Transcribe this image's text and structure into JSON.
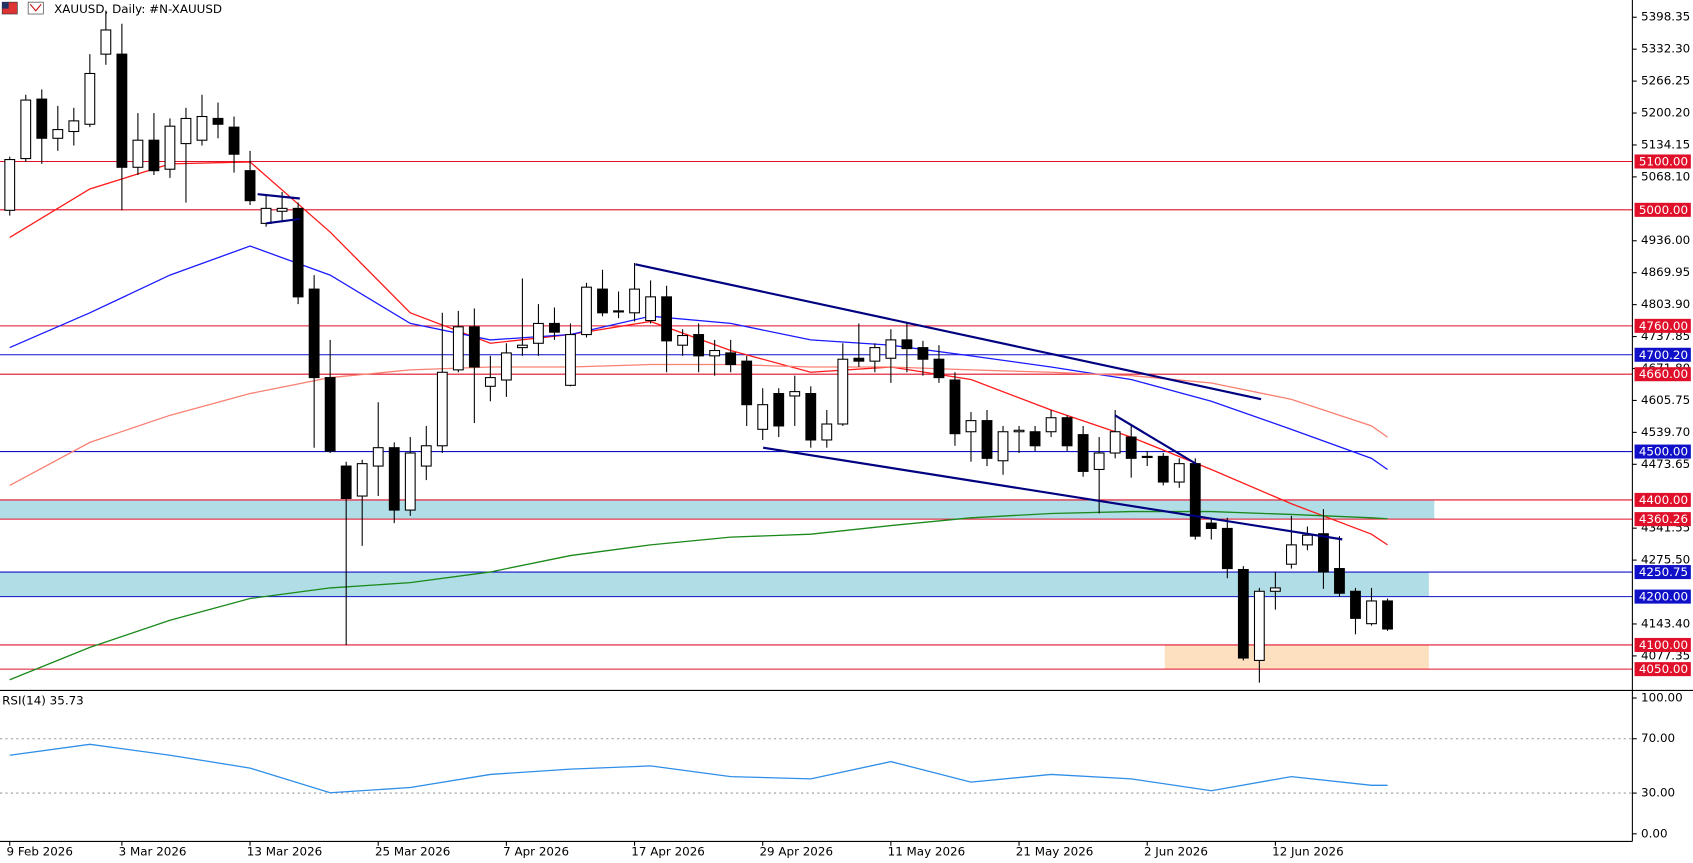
{
  "chart_data": [
    {
      "type": "candlestick",
      "title": "XAUUSD, Daily:  #N-XAUUSD",
      "categories": [
        "9 Feb 2026",
        null,
        null,
        null,
        null,
        null,
        null,
        "3 Mar 2026",
        null,
        null,
        null,
        null,
        null,
        null,
        null,
        "13 Mar 2026",
        null,
        null,
        null,
        null,
        null,
        null,
        null,
        "25 Mar 2026",
        null,
        null,
        null,
        null,
        null,
        null,
        null,
        "7 Apr 2026",
        null,
        null,
        null,
        null,
        null,
        null,
        null,
        "17 Apr 2026",
        null,
        null,
        null,
        null,
        null,
        null,
        null,
        "29 Apr 2026",
        null,
        null,
        null,
        null,
        null,
        null,
        null,
        "11 May 2026",
        null,
        null,
        null,
        null,
        null,
        null,
        null,
        "21 May 2026",
        null,
        null,
        null,
        null,
        null,
        null,
        null,
        "2 Jun 2026",
        null,
        null,
        null,
        null,
        null,
        null,
        null,
        "12 Jun 2026",
        null,
        null,
        null,
        null,
        null,
        null,
        null
      ],
      "open": [
        4999,
        5106,
        5229,
        5148,
        5162,
        5177,
        5322,
        5322,
        5088,
        5144,
        5084,
        5137,
        5144,
        5189,
        5171,
        5081,
        4972,
        4997,
        5003,
        4836,
        4653,
        4470,
        4408,
        4470,
        4508,
        4379,
        4470,
        4512,
        4669,
        4758,
        4635,
        4648,
        4715,
        4724,
        4765,
        4637,
        4742,
        4836,
        4789,
        4787,
        4771,
        4820,
        4720,
        4742,
        4698,
        4704,
        4687,
        4546,
        4620,
        4615,
        4620,
        4524,
        4557,
        4693,
        4687,
        4693,
        4731,
        4715,
        4691,
        4648,
        4541,
        4564,
        4481,
        4541,
        4541,
        4541,
        4570,
        4535,
        4463,
        4497,
        4530,
        4488,
        4490,
        4437,
        4475,
        4352,
        4341,
        4256,
        4068,
        4211,
        4267,
        4307,
        4330,
        4258,
        4211,
        4144,
        4191
      ],
      "high": [
        5110,
        5238,
        5249,
        5215,
        5211,
        5322,
        5412,
        5385,
        5200,
        5200,
        5189,
        5211,
        5238,
        5222,
        5193,
        5122,
        5032,
        5037,
        5015,
        4865,
        4731,
        4479,
        4483,
        4602,
        4519,
        4530,
        4553,
        4787,
        4791,
        4796,
        4698,
        4724,
        4858,
        4805,
        4798,
        4765,
        4849,
        4876,
        4831,
        4890,
        4854,
        4843,
        4753,
        4765,
        4731,
        4731,
        4698,
        4631,
        4631,
        4657,
        4635,
        4586,
        4724,
        4765,
        4724,
        4753,
        4765,
        4729,
        4720,
        4664,
        4582,
        4586,
        4553,
        4553,
        4553,
        4586,
        4575,
        4553,
        4530,
        4586,
        4553,
        4501,
        4497,
        4486,
        4486,
        4363,
        4363,
        4263,
        4218,
        4251,
        4367,
        4345,
        4381,
        4325,
        4218,
        4218,
        4196
      ],
      "low": [
        4988,
        5099,
        5095,
        5122,
        5133,
        5171,
        5300,
        4999,
        5072,
        5072,
        5066,
        5015,
        5133,
        5148,
        5077,
        5010,
        4965,
        4977,
        4805,
        4508,
        4497,
        4100,
        4305,
        4408,
        4352,
        4367,
        4441,
        4497,
        4664,
        4559,
        4604,
        4613,
        4698,
        4698,
        4731,
        4635,
        4736,
        4780,
        4776,
        4769,
        4765,
        4664,
        4698,
        4664,
        4657,
        4664,
        4553,
        4524,
        4530,
        4553,
        4508,
        4508,
        4553,
        4675,
        4664,
        4642,
        4664,
        4657,
        4642,
        4512,
        4479,
        4470,
        4452,
        4497,
        4501,
        4530,
        4501,
        4448,
        4372,
        4486,
        4446,
        4470,
        4430,
        4425,
        4318,
        4318,
        4238,
        4068,
        4022,
        4173,
        4258,
        4296,
        4216,
        4200,
        4122,
        4140,
        4129
      ],
      "close": [
        5104,
        5227,
        5148,
        5166,
        5184,
        5282,
        5372,
        5088,
        5144,
        5081,
        5173,
        5189,
        5193,
        5177,
        5115,
        5019,
        5003,
        5003,
        4820,
        4653,
        4501,
        4403,
        4475,
        4508,
        4379,
        4497,
        4512,
        4664,
        4758,
        4675,
        4653,
        4704,
        4720,
        4765,
        4747,
        4742,
        4840,
        4787,
        4791,
        4836,
        4820,
        4729,
        4740,
        4698,
        4709,
        4680,
        4597,
        4597,
        4553,
        4624,
        4524,
        4557,
        4691,
        4687,
        4715,
        4731,
        4713,
        4691,
        4653,
        4537,
        4564,
        4486,
        4541,
        4544,
        4512,
        4570,
        4512,
        4459,
        4497,
        4541,
        4486,
        4490,
        4437,
        4475,
        4325,
        4341,
        4258,
        4073,
        4211,
        4218,
        4307,
        4327,
        4251,
        4207,
        4155,
        4191,
        4133
      ],
      "up_color": "#ffffff",
      "down_color": "#000000",
      "lines": [
        {
          "color": "#ff1a1a",
          "x": [
            0,
            5,
            10,
            15,
            20,
            25,
            30,
            35,
            40,
            45,
            50,
            55,
            60,
            65,
            70,
            75,
            80,
            85,
            86
          ],
          "values": [
            4943,
            5043,
            5095,
            5099,
            4954,
            4787,
            4724,
            4742,
            4769,
            4709,
            4664,
            4675,
            4649,
            4586,
            4530,
            4463,
            4392,
            4329,
            4307
          ]
        },
        {
          "color": "#1a1aff",
          "x": [
            0,
            5,
            10,
            15,
            20,
            25,
            30,
            35,
            40,
            45,
            50,
            55,
            60,
            65,
            70,
            75,
            80,
            85,
            86
          ],
          "values": [
            4715,
            4787,
            4865,
            4925,
            4865,
            4765,
            4731,
            4742,
            4780,
            4765,
            4731,
            4720,
            4698,
            4675,
            4649,
            4604,
            4546,
            4486,
            4463
          ]
        },
        {
          "color": "#fa8072",
          "x": [
            0,
            5,
            10,
            15,
            20,
            25,
            30,
            35,
            40,
            45,
            50,
            55,
            60,
            65,
            70,
            75,
            80,
            85,
            86
          ],
          "values": [
            4430,
            4519,
            4575,
            4620,
            4653,
            4669,
            4675,
            4675,
            4680,
            4680,
            4675,
            4675,
            4669,
            4664,
            4657,
            4642,
            4608,
            4553,
            4530
          ]
        },
        {
          "color": "#1a8a1a",
          "x": [
            0,
            5,
            10,
            15,
            20,
            25,
            30,
            35,
            40,
            45,
            50,
            55,
            60,
            65,
            70,
            75,
            80,
            85,
            86
          ],
          "values": [
            4028,
            4095,
            4151,
            4196,
            4218,
            4229,
            4251,
            4285,
            4307,
            4323,
            4329,
            4347,
            4363,
            4372,
            4376,
            4376,
            4370,
            4363,
            4361
          ]
        }
      ],
      "levels": [
        {
          "value": 5100,
          "label": "5100.00",
          "color": "#e0102a"
        },
        {
          "value": 5000,
          "label": "5000.00",
          "color": "#e0102a"
        },
        {
          "value": 4760,
          "label": "4760.00",
          "color": "#e0102a"
        },
        {
          "value": 4700.2,
          "label": "4700.20",
          "color": "#1010c8"
        },
        {
          "value": 4660,
          "label": "4660.00",
          "color": "#e0102a"
        },
        {
          "value": 4500,
          "label": "4500.00",
          "color": "#1010c8"
        },
        {
          "value": 4400,
          "label": "4400.00",
          "color": "#e0102a"
        },
        {
          "value": 4360.26,
          "label": "4360.26",
          "color": "#e0102a"
        },
        {
          "value": 4250.75,
          "label": "4250.75",
          "color": "#1010c8"
        },
        {
          "value": 4200,
          "label": "4200.00",
          "color": "#1010c8"
        },
        {
          "value": 4100,
          "label": "4100.00",
          "color": "#e0102a"
        },
        {
          "value": 4050,
          "label": "4050.00",
          "color": "#e0102a"
        }
      ],
      "zones": [
        {
          "from": 4400,
          "to": 4360.26,
          "color": "#b0dde6"
        },
        {
          "from": 4250.75,
          "to": 4200,
          "color": "#b0dde6"
        },
        {
          "from": 4100,
          "to": 4050,
          "color": "#fde0c0"
        }
      ],
      "ylim": [
        4006,
        5434
      ],
      "yticks": [
        5398.35,
        {
          "value": 5332.3,
          "label": "5332.30"
        },
        5266.25,
        {
          "value": 5200.2,
          "label": "5200.20"
        },
        5134.15,
        {
          "value": 5068.1,
          "label": "5068.10"
        },
        {
          "value": 4936,
          "label": "4936.00"
        },
        4869.95,
        {
          "value": 4803.9,
          "label": "4803.90"
        },
        4737.85,
        {
          "value": 4671.8,
          "label": "4671.80"
        },
        4605.75,
        {
          "value": 4539.7,
          "label": "4539.70"
        },
        4473.65,
        4341.55,
        {
          "value": 4275.5,
          "label": "4275.50"
        },
        {
          "value": 4143.4,
          "label": "4143.40"
        },
        4077.35
      ]
    },
    {
      "type": "line",
      "title": "RSI(14) 35.73",
      "color": "#2f8fe8",
      "x": [
        0,
        5,
        10,
        15,
        20,
        25,
        30,
        35,
        40,
        45,
        50,
        55,
        60,
        65,
        70,
        75,
        80,
        85,
        86
      ],
      "values": [
        57.9,
        65.9,
        57.9,
        48.4,
        30.2,
        34.1,
        43.7,
        47.6,
        50,
        42.1,
        40.5,
        53.2,
        38.1,
        43.7,
        40.5,
        31.7,
        42.1,
        35.7,
        35.73
      ],
      "levels": [
        70,
        30
      ],
      "ylim": [
        -5.6,
        105.6
      ],
      "yticks": [
        {
          "value": 100,
          "label": "100.00"
        },
        {
          "value": 70,
          "label": "70.00"
        },
        {
          "value": 30,
          "label": "30.00"
        },
        {
          "value": 0,
          "label": "0.00"
        }
      ]
    }
  ]
}
